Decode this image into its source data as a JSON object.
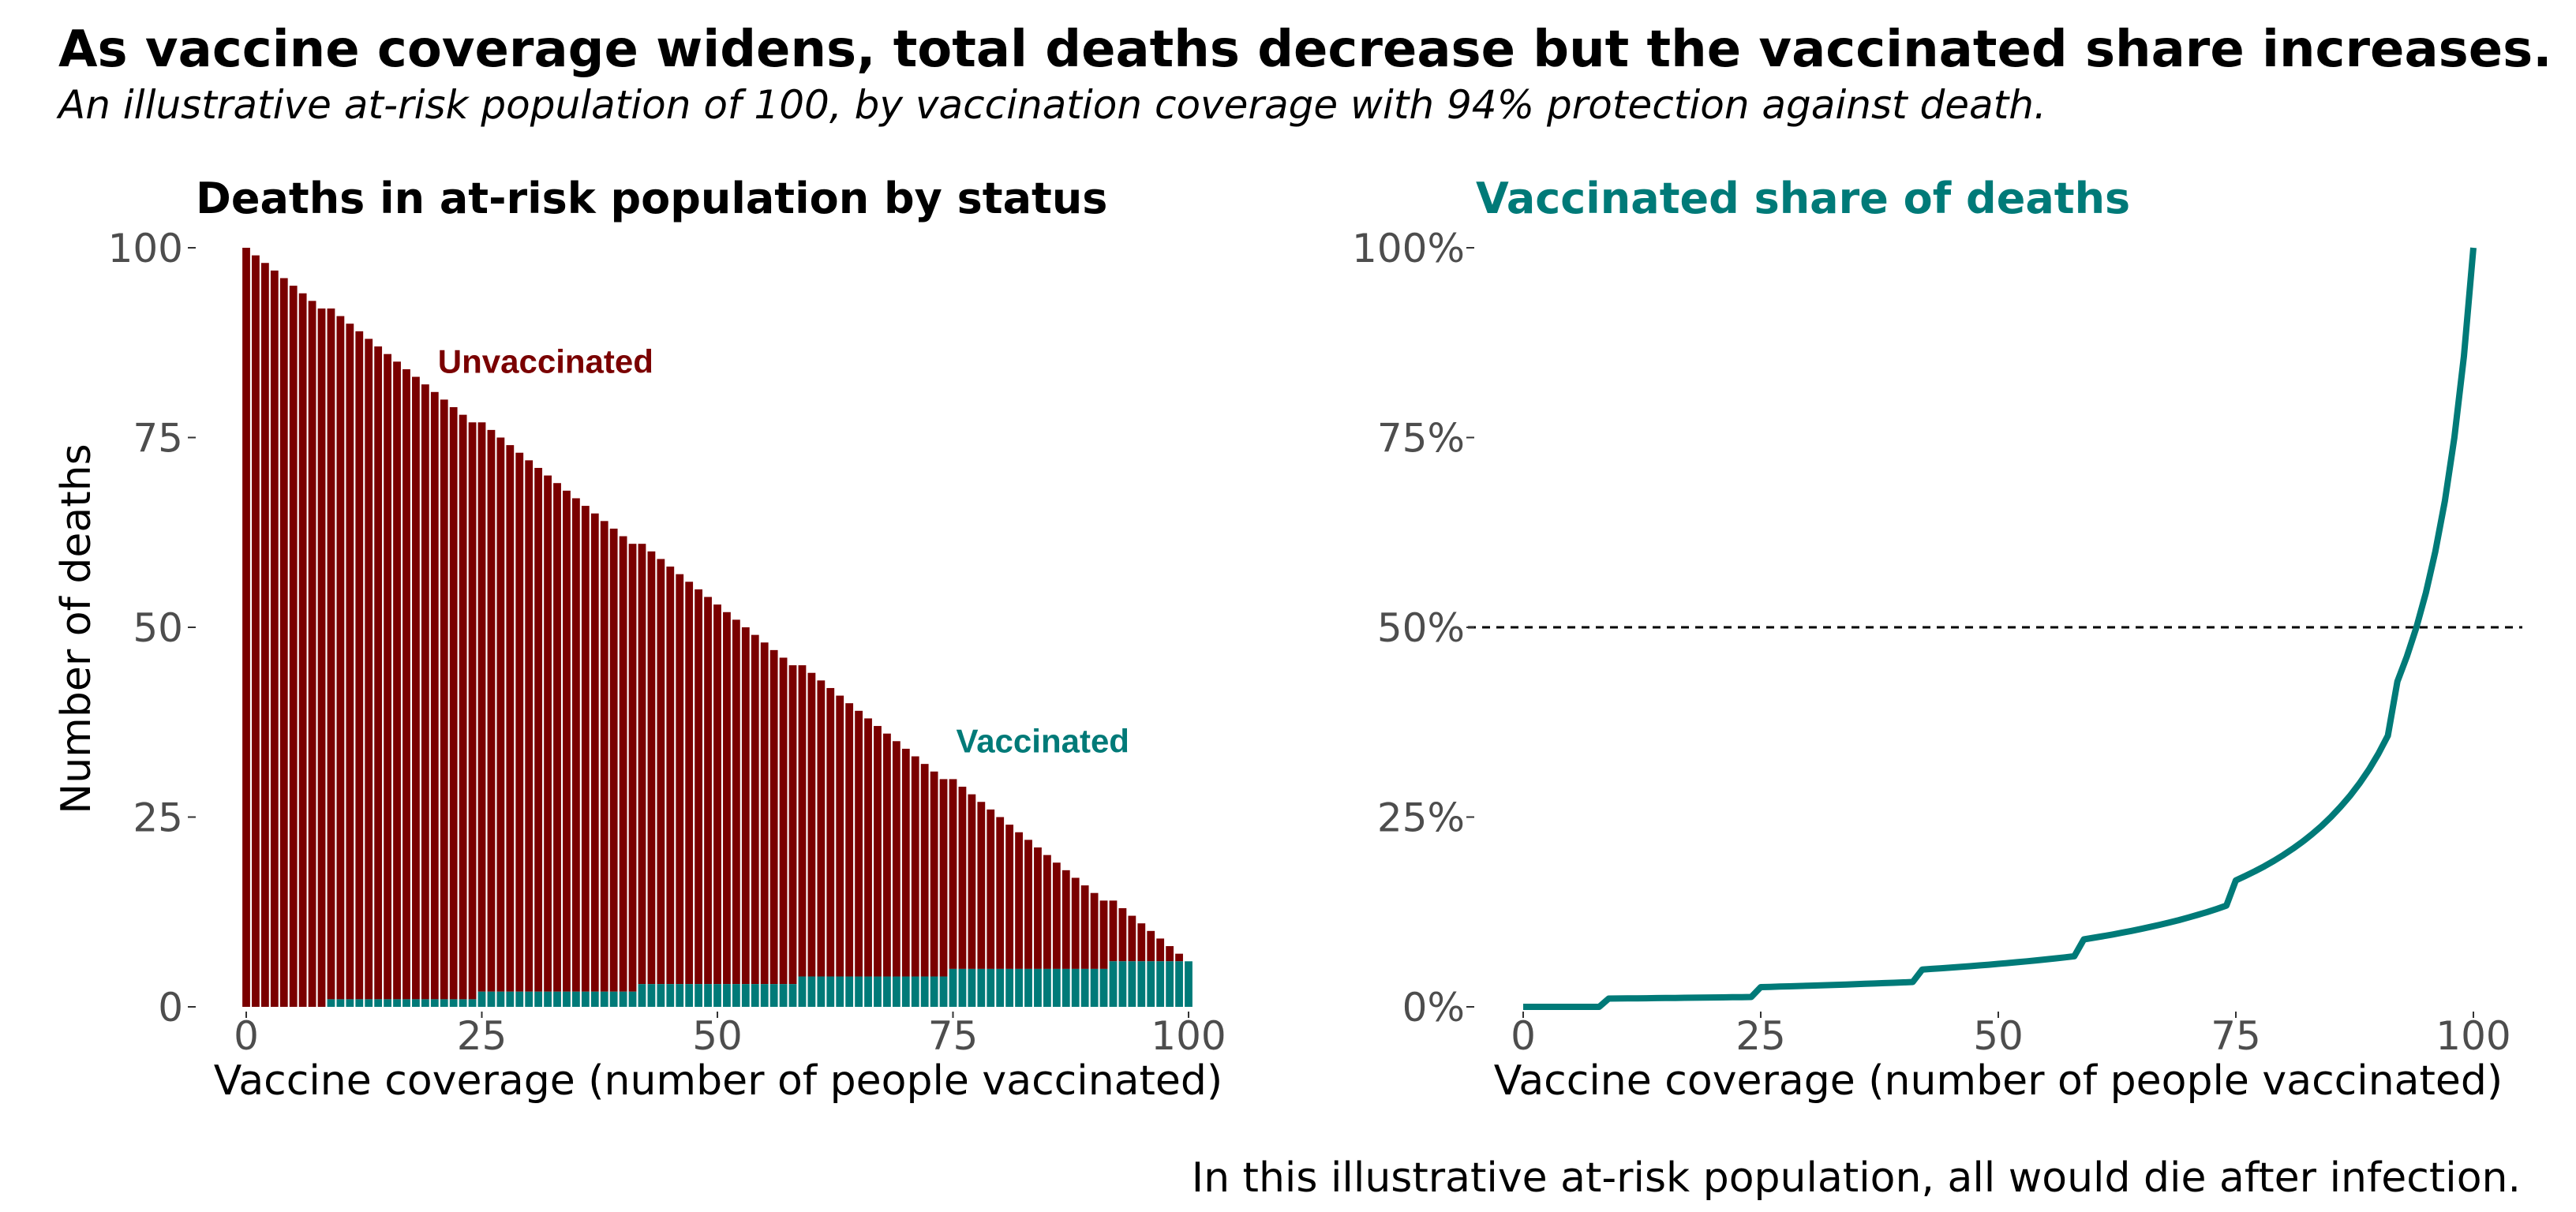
{
  "title": "As vaccine coverage widens, total deaths decrease but the vaccinated share increases.",
  "subtitle": "An illustrative at-risk population of 100, by vaccination coverage with 94% protection against death.",
  "caption": "In this illustrative at-risk population, all would die after infection.",
  "colors": {
    "unvaccinated": "#7a0000",
    "vaccinated": "#007a78",
    "tick_text": "#4d4d4d",
    "reference_line": "#000000"
  },
  "chart_data": [
    {
      "type": "bar",
      "stacked": true,
      "title": "Deaths in at-risk population by status",
      "title_color": "#000000",
      "xlabel": "Vaccine coverage (number of people vaccinated)",
      "ylabel": "Number of deaths",
      "xlim": [
        0,
        100
      ],
      "ylim": [
        0,
        100
      ],
      "x_ticks": [
        0,
        25,
        50,
        75,
        100
      ],
      "y_ticks": [
        0,
        25,
        50,
        75,
        100
      ],
      "y_tick_labels": [
        "0",
        "25",
        "50",
        "75",
        "100"
      ],
      "grid": false,
      "x": "integers 0 to 100 (vaccinated count)",
      "series": [
        {
          "name": "Unvaccinated",
          "color": "#7a0000",
          "rule": "100 - x"
        },
        {
          "name": "Vaccinated",
          "color": "#007a78",
          "rule": "round(0.06 * x)"
        }
      ],
      "annotations": [
        {
          "text": "Unvaccinated",
          "x": 20,
          "y": 85,
          "color": "#7a0000"
        },
        {
          "text": "Vaccinated",
          "x": 75,
          "y": 35,
          "color": "#007a78"
        }
      ]
    },
    {
      "type": "line",
      "title": "Vaccinated share of deaths",
      "title_color": "#007a78",
      "xlabel": "Vaccine coverage (number of people vaccinated)",
      "ylabel": "",
      "xlim": [
        0,
        100
      ],
      "ylim": [
        0,
        100
      ],
      "x_ticks": [
        0,
        25,
        50,
        75,
        100
      ],
      "y_ticks": [
        0,
        25,
        50,
        75,
        100
      ],
      "y_tick_labels": [
        "0%",
        "25%",
        "50%",
        "75%",
        "100%"
      ],
      "grid": false,
      "series": [
        {
          "name": "Vaccinated share",
          "color": "#007a78",
          "rule": "100 * round(0.06 * x) / (100 - x + round(0.06 * x))"
        }
      ],
      "reference_line": {
        "y": 50,
        "style": "dashed"
      }
    }
  ]
}
